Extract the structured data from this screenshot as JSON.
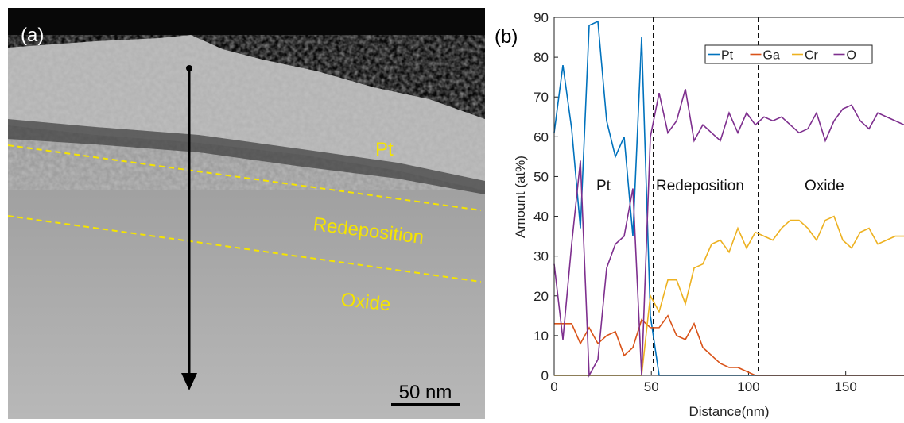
{
  "panel_a": {
    "label": "(a)",
    "layers": [
      "Pt",
      "Redeposition",
      "Oxide"
    ],
    "scale_bar": "50 nm"
  },
  "chart_data": {
    "type": "line",
    "title": "(b)",
    "x_label": "Distance(nm)",
    "y_label": "Amount (at%)",
    "x": [
      0,
      4.5,
      9,
      13.5,
      18,
      22.5,
      27,
      31.5,
      36,
      40.5,
      45,
      49.5,
      54,
      58.5,
      63,
      67.5,
      72,
      76.5,
      81,
      85.5,
      90,
      94.5,
      99,
      103.5,
      108,
      112.5,
      117,
      121.5,
      126,
      130.5,
      135,
      139.5,
      144,
      148.5,
      153,
      157.5,
      162,
      166.5,
      171,
      175.5,
      180
    ],
    "series": [
      {
        "name": "Pt",
        "color": "#0072bd",
        "values": [
          61,
          78,
          62,
          37,
          88,
          89,
          64,
          55,
          60,
          35,
          85,
          15,
          0,
          0,
          0,
          0,
          0,
          0,
          0,
          0,
          0,
          0,
          0,
          0,
          0,
          0,
          0,
          0,
          0,
          0,
          0,
          0,
          0,
          0,
          0,
          0,
          0,
          0,
          0,
          0,
          0
        ]
      },
      {
        "name": "Ga",
        "color": "#d95319",
        "values": [
          13,
          13,
          13,
          8,
          12,
          8,
          10,
          11,
          5,
          7,
          14,
          12,
          12,
          15,
          10,
          9,
          13,
          7,
          5,
          3,
          2,
          2,
          1,
          0,
          0,
          0,
          0,
          0,
          0,
          0,
          0,
          0,
          0,
          0,
          0,
          0,
          0,
          0,
          0,
          0,
          0
        ]
      },
      {
        "name": "Cr",
        "color": "#edb120",
        "values": [
          0,
          0,
          0,
          0,
          0,
          0,
          0,
          0,
          0,
          0,
          0,
          20,
          16,
          24,
          24,
          18,
          27,
          28,
          33,
          34,
          31,
          37,
          32,
          36,
          35,
          34,
          37,
          39,
          39,
          37,
          34,
          39,
          40,
          34,
          32,
          36,
          37,
          33,
          34,
          35,
          35
        ]
      },
      {
        "name": "O",
        "color": "#7e2f8e",
        "values": [
          28,
          9,
          33,
          54,
          0,
          4,
          27,
          33,
          35,
          47,
          0,
          60,
          71,
          61,
          64,
          72,
          59,
          63,
          61,
          59,
          66,
          61,
          66,
          63,
          65,
          64,
          65,
          63,
          61,
          62,
          66,
          59,
          64,
          67,
          68,
          64,
          62,
          66,
          65,
          64,
          63
        ]
      }
    ],
    "xlim": [
      0,
      180
    ],
    "xticks": [
      0,
      50,
      100,
      150
    ],
    "ylim": [
      0,
      90
    ],
    "yticks": [
      0,
      10,
      20,
      30,
      40,
      50,
      60,
      70,
      80,
      90
    ],
    "vlines": [
      51,
      105
    ],
    "annotations": [
      "Pt",
      "Redeposition",
      "Oxide"
    ],
    "legend": "upper right",
    "grid": false
  }
}
